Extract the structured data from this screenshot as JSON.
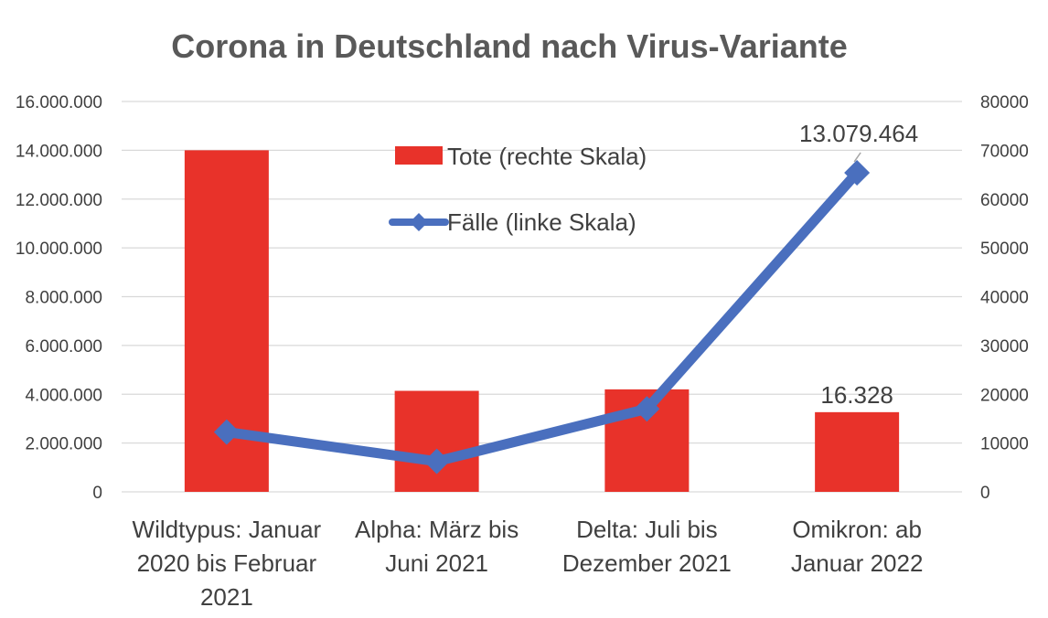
{
  "chart_data": {
    "type": "bar",
    "title": "Corona in Deutschland nach Virus-Variante",
    "categories": [
      [
        "Wildtypus: Januar",
        "2020 bis Februar",
        "2021"
      ],
      [
        "Alpha: März bis",
        "Juni 2021"
      ],
      [
        "Delta: Juli bis",
        "Dezember 2021"
      ],
      [
        "Omikron: ab",
        "Januar 2022"
      ]
    ],
    "y_left": {
      "min": 0,
      "max": 16000000,
      "ticks": [
        "0",
        "2.000.000",
        "4.000.000",
        "6.000.000",
        "8.000.000",
        "10.000.000",
        "12.000.000",
        "14.000.000",
        "16.000.000"
      ]
    },
    "y_right": {
      "min": 0,
      "max": 80000,
      "ticks": [
        "0",
        "10000",
        "20000",
        "30000",
        "40000",
        "50000",
        "60000",
        "70000",
        "80000"
      ]
    },
    "grid": true,
    "legend": {
      "placement": "top-center"
    },
    "series": [
      {
        "name": "Tote (rechte Skala)",
        "type": "bar",
        "axis": "right",
        "color": "#e8322a",
        "values": [
          70000,
          20700,
          21000,
          16328
        ],
        "data_labels": [
          "",
          "",
          "",
          "16.328"
        ]
      },
      {
        "name": "Fälle (linke Skala)",
        "type": "line",
        "axis": "left",
        "color": "#4a6fbe",
        "values": [
          2450000,
          1250000,
          3400000,
          13079464
        ],
        "data_labels": [
          "",
          "",
          "",
          "13.079.464"
        ]
      }
    ]
  }
}
